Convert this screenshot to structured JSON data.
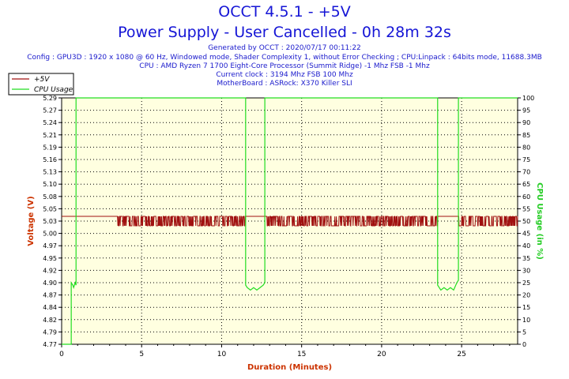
{
  "header": {
    "title": "OCCT 4.5.1 - +5V",
    "subtitle": "Power Supply - User Cancelled - 0h 28m 32s",
    "generated": "Generated by OCCT : 2020/07/17 00:11:22",
    "config": "Config : GPU3D : 1920 x 1080 @ 60 Hz, Windowed mode, Shader Complexity 1, without Error Checking ; CPU:Linpack : 64bits mode, 11688.3MB",
    "cpu": "CPU : AMD Ryzen 7 1700 Eight-Core Processor (Summit Ridge) -1 Mhz FSB -1 Mhz",
    "clock": "Current clock : 3194 Mhz FSB 100 Mhz",
    "motherboard": "MotherBoard : ASRock: X370 Killer SLI"
  },
  "colors": {
    "voltage": "#a01010",
    "cpu": "#22dd22",
    "plot_bg": "#ffffe0",
    "axis_label": "#cc3300",
    "cpu_axis_label": "#22cc22"
  },
  "chart_data": {
    "type": "line",
    "title": "OCCT 4.5.1 - +5V",
    "xlabel": "Duration (Minutes)",
    "ylabel": "Voltage (V)",
    "y2label": "CPU Usage (in %)",
    "xlim": [
      0,
      28.5
    ],
    "ylim": [
      4.77,
      5.29
    ],
    "y2lim": [
      0,
      100
    ],
    "x_ticks": [
      0,
      5,
      10,
      15,
      20,
      25
    ],
    "y_ticks": [
      "4.77",
      "4.79",
      "4.82",
      "4.84",
      "4.87",
      "4.90",
      "4.92",
      "4.95",
      "4.97",
      "5.00",
      "5.03",
      "5.05",
      "5.08",
      "5.10",
      "5.13",
      "5.16",
      "5.19",
      "5.21",
      "5.24",
      "5.27",
      "5.29"
    ],
    "y2_ticks": [
      0,
      5,
      10,
      15,
      20,
      25,
      30,
      35,
      40,
      45,
      50,
      55,
      60,
      65,
      70,
      75,
      80,
      85,
      90,
      95,
      100
    ],
    "grid": true,
    "legend_position": "top-left",
    "series": [
      {
        "name": "+5V",
        "axis": "left",
        "base": 5.04,
        "dip": 5.02,
        "stable_until_minutes": 3.5,
        "description_points": [
          [
            0,
            5.04
          ],
          [
            3.5,
            5.04
          ],
          [
            28.5,
            5.03
          ]
        ]
      },
      {
        "name": "CPU Usage",
        "axis": "right",
        "points": [
          [
            0,
            0
          ],
          [
            0.6,
            0
          ],
          [
            0.6,
            25
          ],
          [
            0.7,
            24
          ],
          [
            0.75,
            23
          ],
          [
            0.8,
            24
          ],
          [
            0.85,
            25
          ],
          [
            0.9,
            24
          ],
          [
            0.9,
            100
          ],
          [
            11.5,
            100
          ],
          [
            11.5,
            24
          ],
          [
            11.6,
            23
          ],
          [
            11.8,
            22
          ],
          [
            12.0,
            23
          ],
          [
            12.2,
            22
          ],
          [
            12.4,
            23
          ],
          [
            12.6,
            24
          ],
          [
            12.7,
            25
          ],
          [
            12.7,
            100
          ],
          [
            23.5,
            100
          ],
          [
            23.5,
            24
          ],
          [
            23.7,
            22
          ],
          [
            23.9,
            23
          ],
          [
            24.1,
            22
          ],
          [
            24.3,
            23
          ],
          [
            24.5,
            22
          ],
          [
            24.7,
            25
          ],
          [
            24.8,
            26
          ],
          [
            24.8,
            100
          ],
          [
            28.5,
            100
          ]
        ]
      }
    ]
  }
}
